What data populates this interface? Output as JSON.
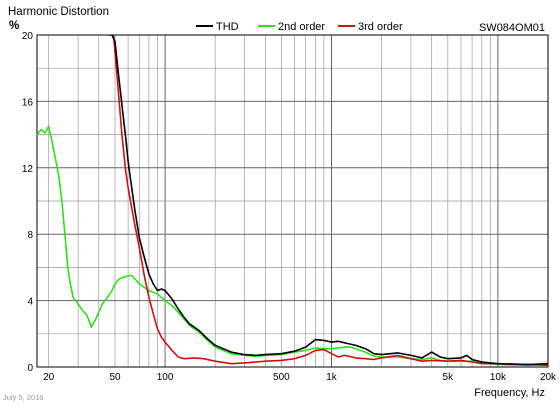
{
  "chart_data": {
    "type": "line",
    "title": "Harmonic Distortion",
    "model": "SW084OM01",
    "ylabel": "%",
    "xlabel": "Frequency, Hz",
    "x_scale": "log",
    "xlim": [
      17,
      20000
    ],
    "ylim": [
      0,
      20
    ],
    "grid": true,
    "legend_position": "top-center",
    "y_ticks": [
      {
        "value": 0,
        "label": "0"
      },
      {
        "value": 4,
        "label": "4"
      },
      {
        "value": 8,
        "label": "8"
      },
      {
        "value": 12,
        "label": "12"
      },
      {
        "value": 16,
        "label": "16"
      },
      {
        "value": 20,
        "label": "20"
      }
    ],
    "x_ticks": [
      {
        "value": 20,
        "label": "20"
      },
      {
        "value": 50,
        "label": "50"
      },
      {
        "value": 100,
        "label": "100"
      },
      {
        "value": 500,
        "label": "500"
      },
      {
        "value": 1000,
        "label": "1k"
      },
      {
        "value": 5000,
        "label": "5k"
      },
      {
        "value": 10000,
        "label": "10k"
      },
      {
        "value": 20000,
        "label": "20k"
      }
    ],
    "series": [
      {
        "name": "THD",
        "color": "#000000",
        "points": [
          [
            46,
            20
          ],
          [
            48,
            20
          ],
          [
            50,
            19.6
          ],
          [
            52,
            18.0
          ],
          [
            55,
            15.8
          ],
          [
            58,
            13.8
          ],
          [
            60,
            12.4
          ],
          [
            63,
            10.8
          ],
          [
            66,
            9.4
          ],
          [
            70,
            7.8
          ],
          [
            75,
            6.6
          ],
          [
            80,
            5.6
          ],
          [
            85,
            5.0
          ],
          [
            90,
            4.6
          ],
          [
            95,
            4.7
          ],
          [
            100,
            4.6
          ],
          [
            110,
            4.1
          ],
          [
            120,
            3.5
          ],
          [
            130,
            3.0
          ],
          [
            140,
            2.6
          ],
          [
            160,
            2.2
          ],
          [
            180,
            1.7
          ],
          [
            200,
            1.3
          ],
          [
            250,
            0.9
          ],
          [
            300,
            0.75
          ],
          [
            350,
            0.7
          ],
          [
            400,
            0.75
          ],
          [
            500,
            0.8
          ],
          [
            600,
            0.95
          ],
          [
            700,
            1.2
          ],
          [
            800,
            1.65
          ],
          [
            900,
            1.6
          ],
          [
            1000,
            1.5
          ],
          [
            1100,
            1.55
          ],
          [
            1200,
            1.45
          ],
          [
            1400,
            1.3
          ],
          [
            1600,
            1.1
          ],
          [
            1800,
            0.8
          ],
          [
            2000,
            0.75
          ],
          [
            2500,
            0.85
          ],
          [
            3000,
            0.7
          ],
          [
            3500,
            0.55
          ],
          [
            4000,
            0.9
          ],
          [
            4500,
            0.6
          ],
          [
            5000,
            0.5
          ],
          [
            6000,
            0.55
          ],
          [
            6500,
            0.7
          ],
          [
            7000,
            0.45
          ],
          [
            8000,
            0.3
          ],
          [
            10000,
            0.2
          ],
          [
            15000,
            0.15
          ],
          [
            20000,
            0.2
          ]
        ]
      },
      {
        "name": "2nd order",
        "color": "#33dd22",
        "points": [
          [
            17,
            14.0
          ],
          [
            18,
            14.3
          ],
          [
            19,
            14.1
          ],
          [
            20,
            14.5
          ],
          [
            21,
            13.5
          ],
          [
            22,
            12.5
          ],
          [
            23,
            11.5
          ],
          [
            24,
            10.0
          ],
          [
            25,
            8.0
          ],
          [
            26,
            6.0
          ],
          [
            27,
            5.0
          ],
          [
            28,
            4.2
          ],
          [
            30,
            3.8
          ],
          [
            32,
            3.4
          ],
          [
            34,
            3.1
          ],
          [
            36,
            2.4
          ],
          [
            38,
            2.8
          ],
          [
            40,
            3.3
          ],
          [
            42,
            3.8
          ],
          [
            45,
            4.2
          ],
          [
            48,
            4.6
          ],
          [
            50,
            5.0
          ],
          [
            53,
            5.3
          ],
          [
            56,
            5.4
          ],
          [
            60,
            5.5
          ],
          [
            63,
            5.5
          ],
          [
            66,
            5.3
          ],
          [
            70,
            5.0
          ],
          [
            75,
            4.8
          ],
          [
            80,
            4.6
          ],
          [
            85,
            4.5
          ],
          [
            90,
            4.4
          ],
          [
            95,
            4.2
          ],
          [
            100,
            4.0
          ],
          [
            110,
            3.7
          ],
          [
            120,
            3.3
          ],
          [
            130,
            2.9
          ],
          [
            140,
            2.5
          ],
          [
            160,
            2.1
          ],
          [
            180,
            1.6
          ],
          [
            200,
            1.2
          ],
          [
            250,
            0.8
          ],
          [
            300,
            0.7
          ],
          [
            350,
            0.65
          ],
          [
            400,
            0.7
          ],
          [
            500,
            0.75
          ],
          [
            600,
            0.9
          ],
          [
            700,
            1.0
          ],
          [
            800,
            1.15
          ],
          [
            900,
            1.1
          ],
          [
            1000,
            1.1
          ],
          [
            1100,
            1.15
          ],
          [
            1200,
            1.2
          ],
          [
            1300,
            1.2
          ],
          [
            1400,
            1.1
          ],
          [
            1600,
            0.9
          ],
          [
            1800,
            0.65
          ],
          [
            2000,
            0.6
          ],
          [
            2500,
            0.6
          ],
          [
            3000,
            0.5
          ],
          [
            3500,
            0.45
          ],
          [
            4000,
            0.55
          ],
          [
            4500,
            0.4
          ],
          [
            5000,
            0.35
          ],
          [
            6000,
            0.35
          ],
          [
            7000,
            0.35
          ],
          [
            8000,
            0.25
          ],
          [
            10000,
            0.15
          ],
          [
            15000,
            0.1
          ],
          [
            20000,
            0.15
          ]
        ]
      },
      {
        "name": "3rd order",
        "color": "#cc1111",
        "points": [
          [
            49,
            20
          ],
          [
            50,
            19.0
          ],
          [
            52,
            17.0
          ],
          [
            55,
            14.0
          ],
          [
            58,
            11.8
          ],
          [
            60,
            10.8
          ],
          [
            63,
            9.6
          ],
          [
            66,
            8.5
          ],
          [
            70,
            7.2
          ],
          [
            75,
            5.5
          ],
          [
            80,
            4.2
          ],
          [
            85,
            3.2
          ],
          [
            90,
            2.3
          ],
          [
            95,
            1.8
          ],
          [
            100,
            1.5
          ],
          [
            110,
            1.0
          ],
          [
            120,
            0.6
          ],
          [
            130,
            0.5
          ],
          [
            150,
            0.55
          ],
          [
            170,
            0.5
          ],
          [
            200,
            0.35
          ],
          [
            250,
            0.2
          ],
          [
            300,
            0.25
          ],
          [
            400,
            0.35
          ],
          [
            500,
            0.4
          ],
          [
            600,
            0.5
          ],
          [
            700,
            0.7
          ],
          [
            800,
            1.0
          ],
          [
            900,
            1.05
          ],
          [
            1000,
            0.8
          ],
          [
            1100,
            0.6
          ],
          [
            1200,
            0.7
          ],
          [
            1400,
            0.55
          ],
          [
            1600,
            0.5
          ],
          [
            1800,
            0.45
          ],
          [
            2000,
            0.55
          ],
          [
            2500,
            0.7
          ],
          [
            3000,
            0.5
          ],
          [
            3500,
            0.35
          ],
          [
            4000,
            0.4
          ],
          [
            5000,
            0.35
          ],
          [
            6000,
            0.4
          ],
          [
            7000,
            0.3
          ],
          [
            8000,
            0.2
          ],
          [
            10000,
            0.2
          ],
          [
            15000,
            0.15
          ],
          [
            20000,
            0.1
          ]
        ]
      }
    ]
  },
  "footer": {
    "date": "July 5, 2016"
  }
}
